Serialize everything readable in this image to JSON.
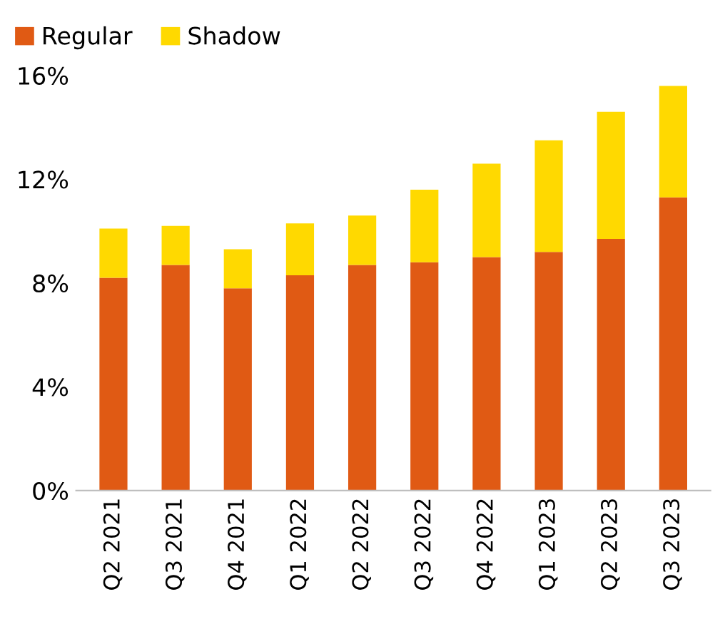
{
  "chart_data": {
    "type": "bar",
    "stacked": true,
    "categories": [
      "Q2 2021",
      "Q3 2021",
      "Q4 2021",
      "Q1 2022",
      "Q2 2022",
      "Q3 2022",
      "Q4 2022",
      "Q1 2023",
      "Q2 2023",
      "Q3 2023"
    ],
    "series": [
      {
        "name": "Regular",
        "color": "#e05a14",
        "values": [
          8.2,
          8.7,
          7.8,
          8.3,
          8.7,
          8.8,
          9.0,
          9.2,
          9.7,
          11.3
        ]
      },
      {
        "name": "Shadow",
        "color": "#ffd900",
        "values": [
          1.9,
          1.5,
          1.5,
          2.0,
          1.9,
          2.8,
          3.6,
          4.3,
          4.9,
          4.3
        ]
      }
    ],
    "ylim": [
      0,
      16
    ],
    "yticks": [
      {
        "value": 0,
        "label": "0%"
      },
      {
        "value": 4,
        "label": "4%"
      },
      {
        "value": 8,
        "label": "8%"
      },
      {
        "value": 12,
        "label": "12%"
      },
      {
        "value": 16,
        "label": "16%"
      }
    ],
    "grid": false,
    "legend": "top left"
  }
}
